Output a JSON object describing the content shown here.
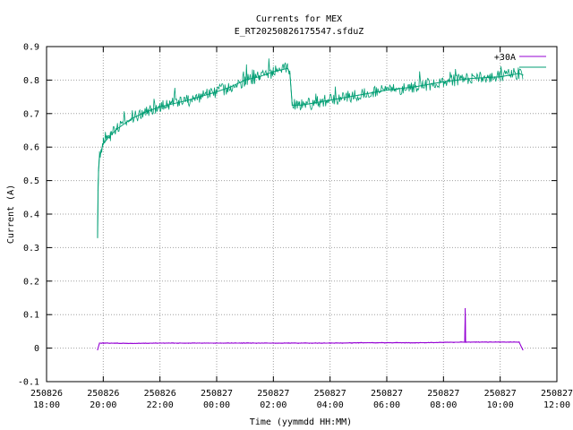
{
  "chart_data": {
    "type": "line",
    "title": "Currents for MEX",
    "subtitle": "E_RT20250826175547.sfduZ",
    "xlabel": "Time (yymmdd HH:MM)",
    "ylabel": "Current (A)",
    "ylim": [
      -0.1,
      0.9
    ],
    "yticks": [
      "-0.1",
      "0",
      "0.1",
      "0.2",
      "0.3",
      "0.4",
      "0.5",
      "0.6",
      "0.7",
      "0.8",
      "0.9"
    ],
    "xlim": [
      "250826 18:00",
      "250827 12:00"
    ],
    "xticks": [
      {
        "date": "250826",
        "time": "18:00"
      },
      {
        "date": "250826",
        "time": "20:00"
      },
      {
        "date": "250826",
        "time": "22:00"
      },
      {
        "date": "250827",
        "time": "00:00"
      },
      {
        "date": "250827",
        "time": "02:00"
      },
      {
        "date": "250827",
        "time": "04:00"
      },
      {
        "date": "250827",
        "time": "06:00"
      },
      {
        "date": "250827",
        "time": "08:00"
      },
      {
        "date": "250827",
        "time": "10:00"
      },
      {
        "date": "250827",
        "time": "12:00"
      }
    ],
    "grid": true,
    "legend_position": "top-right",
    "series": [
      {
        "name": "+30A",
        "color": "#9400d3",
        "x": [
          "250826 19:48",
          "250826 19:52",
          "250826 20:00",
          "250826 21:00",
          "250826 22:00",
          "250826 23:00",
          "250827 00:00",
          "250827 01:00",
          "250827 02:00",
          "250827 03:00",
          "250827 04:00",
          "250827 05:00",
          "250827 06:00",
          "250827 07:00",
          "250827 08:00",
          "250827 08:45",
          "250827 08:46",
          "250827 08:47",
          "250827 09:00",
          "250827 10:00",
          "250827 10:40",
          "250827 10:48"
        ],
        "y": [
          -0.005,
          0.015,
          0.015,
          0.014,
          0.015,
          0.015,
          0.015,
          0.015,
          0.015,
          0.015,
          0.015,
          0.016,
          0.016,
          0.016,
          0.017,
          0.018,
          0.118,
          0.018,
          0.018,
          0.018,
          0.018,
          -0.005
        ]
      },
      {
        "name": "",
        "color": "#009e73",
        "x": [
          "250826 19:48",
          "250826 19:49",
          "250826 19:50",
          "250826 19:52",
          "250826 20:00",
          "250826 20:15",
          "250826 20:30",
          "250826 21:00",
          "250826 21:30",
          "250826 22:00",
          "250826 23:00",
          "250827 00:00",
          "250827 00:30",
          "250827 01:00",
          "250827 01:30",
          "250827 02:00",
          "250827 02:30",
          "250827 02:35",
          "250827 02:40",
          "250827 03:00",
          "250827 04:00",
          "250827 05:00",
          "250827 06:00",
          "250827 07:00",
          "250827 08:00",
          "250827 09:00",
          "250827 10:00",
          "250827 10:40",
          "250827 10:48"
        ],
        "y": [
          0.33,
          0.47,
          0.53,
          0.57,
          0.61,
          0.635,
          0.655,
          0.685,
          0.705,
          0.72,
          0.74,
          0.765,
          0.78,
          0.8,
          0.81,
          0.825,
          0.835,
          0.82,
          0.725,
          0.725,
          0.74,
          0.755,
          0.77,
          0.78,
          0.795,
          0.805,
          0.81,
          0.82,
          0.815
        ]
      }
    ]
  }
}
